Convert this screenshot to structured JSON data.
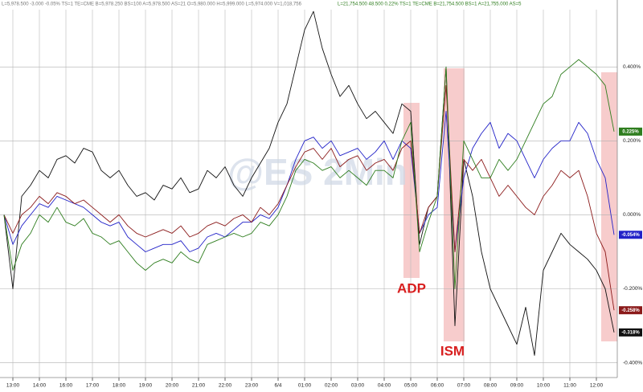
{
  "chart_data": {
    "type": "line",
    "info_lines": [
      "L=5,978.500 -3.000 -0.05% TS=1 TE=CME B=5,978.250 BS=100 A=5,978.500 AS=21 O=5,980.000 H=5,999.000 L=5,974.000 V=1,018,756",
      "L=21,754.500 48.500 0.22% TS=1 TE=CME B=21,754.500 BS=1 A=21,755.000 AS=5"
    ],
    "watermark": "@ES 2Min",
    "annotations": [
      "ADP",
      "ISM"
    ],
    "categories": [
      null,
      "13:00",
      null,
      null,
      "14:00",
      null,
      null,
      "16:00",
      null,
      null,
      "17:00",
      null,
      null,
      "18:00",
      null,
      null,
      "19:00",
      null,
      null,
      "20:00",
      null,
      null,
      "21:00",
      null,
      null,
      "22:00",
      null,
      null,
      "23:00",
      null,
      null,
      "6/4",
      null,
      null,
      "01:00",
      null,
      null,
      "02:00",
      null,
      null,
      "03:00",
      null,
      null,
      "04:00",
      null,
      null,
      "05:00",
      null,
      null,
      "06:00",
      null,
      null,
      "07:00",
      null,
      null,
      "08:00",
      null,
      null,
      "09:00",
      null,
      null,
      "10:00",
      null,
      null,
      "11:00",
      null,
      null,
      "12:00",
      null,
      null
    ],
    "ylim": [
      -0.44,
      0.57
    ],
    "yticks": [
      {
        "value": 0.4,
        "label": "0.400%"
      },
      {
        "value": 0.2,
        "label": "0.200%"
      },
      {
        "value": 0,
        "label": "0.000%"
      },
      {
        "value": -0.2,
        "label": "-0.200%"
      },
      {
        "value": -0.4,
        "label": "-0.400%"
      }
    ],
    "grid": true,
    "series": [
      {
        "name": "Black",
        "color": "#111111",
        "end_label": "-0.318%",
        "values": [
          0.0,
          -0.2,
          0.05,
          0.08,
          0.12,
          0.1,
          0.15,
          0.16,
          0.14,
          0.18,
          0.17,
          0.12,
          0.1,
          0.12,
          0.08,
          0.05,
          0.06,
          0.04,
          0.08,
          0.07,
          0.1,
          0.06,
          0.07,
          0.12,
          0.1,
          0.13,
          0.08,
          0.05,
          0.1,
          0.14,
          0.18,
          0.25,
          0.3,
          0.4,
          0.5,
          0.55,
          0.45,
          0.38,
          0.32,
          0.35,
          0.3,
          0.26,
          0.28,
          0.25,
          0.22,
          0.3,
          0.28,
          -0.08,
          0.02,
          0.05,
          0.4,
          -0.3,
          0.15,
          0.05,
          -0.1,
          -0.2,
          -0.25,
          -0.3,
          -0.35,
          -0.25,
          -0.38,
          -0.15,
          -0.1,
          -0.05,
          -0.08,
          -0.1,
          -0.12,
          -0.15,
          -0.2,
          -0.318
        ]
      },
      {
        "name": "Blue",
        "color": "#2222c8",
        "end_label": "-0.054%",
        "values": [
          0.0,
          -0.08,
          -0.03,
          0.0,
          0.03,
          0.02,
          0.05,
          0.04,
          0.03,
          0.02,
          0.0,
          -0.02,
          -0.03,
          -0.02,
          -0.06,
          -0.08,
          -0.1,
          -0.09,
          -0.08,
          -0.08,
          -0.07,
          -0.1,
          -0.09,
          -0.06,
          -0.05,
          -0.06,
          -0.04,
          -0.02,
          -0.02,
          0.0,
          -0.01,
          0.02,
          0.08,
          0.15,
          0.2,
          0.21,
          0.18,
          0.2,
          0.16,
          0.17,
          0.18,
          0.15,
          0.17,
          0.2,
          0.15,
          0.2,
          0.18,
          -0.05,
          0.0,
          0.02,
          0.28,
          -0.1,
          0.1,
          0.18,
          0.22,
          0.25,
          0.18,
          0.22,
          0.2,
          0.15,
          0.1,
          0.15,
          0.18,
          0.2,
          0.2,
          0.25,
          0.22,
          0.15,
          0.1,
          -0.054
        ]
      },
      {
        "name": "Red",
        "color": "#8b1a1a",
        "end_label": "-0.258%",
        "values": [
          0.0,
          -0.05,
          0.0,
          0.02,
          0.05,
          0.03,
          0.06,
          0.05,
          0.03,
          0.04,
          0.02,
          0.0,
          -0.02,
          0.0,
          -0.03,
          -0.05,
          -0.06,
          -0.05,
          -0.04,
          -0.05,
          -0.03,
          -0.06,
          -0.05,
          -0.03,
          -0.02,
          -0.03,
          -0.01,
          0.0,
          -0.02,
          0.02,
          0.0,
          0.03,
          0.08,
          0.13,
          0.17,
          0.18,
          0.15,
          0.18,
          0.13,
          0.15,
          0.16,
          0.12,
          0.14,
          0.15,
          0.12,
          0.18,
          0.2,
          -0.05,
          0.02,
          0.05,
          0.35,
          -0.1,
          0.15,
          0.12,
          0.15,
          0.1,
          0.05,
          0.08,
          0.05,
          0.02,
          0.0,
          0.05,
          0.08,
          0.12,
          0.1,
          0.12,
          0.05,
          -0.05,
          -0.1,
          -0.258
        ]
      },
      {
        "name": "Green",
        "color": "#2e7d1e",
        "end_label": "0.225%",
        "values": [
          0.0,
          -0.15,
          -0.08,
          -0.05,
          0.0,
          -0.02,
          0.02,
          -0.02,
          -0.03,
          -0.01,
          -0.05,
          -0.06,
          -0.08,
          -0.07,
          -0.1,
          -0.13,
          -0.15,
          -0.13,
          -0.12,
          -0.13,
          -0.1,
          -0.12,
          -0.13,
          -0.08,
          -0.07,
          -0.06,
          -0.05,
          -0.06,
          -0.05,
          -0.02,
          -0.03,
          0.0,
          0.05,
          0.12,
          0.15,
          0.14,
          0.12,
          0.13,
          0.1,
          0.12,
          0.1,
          0.08,
          0.12,
          0.12,
          0.1,
          0.2,
          0.25,
          -0.1,
          -0.02,
          0.05,
          0.4,
          -0.2,
          0.2,
          0.15,
          0.1,
          0.1,
          0.15,
          0.12,
          0.15,
          0.2,
          0.25,
          0.3,
          0.32,
          0.38,
          0.4,
          0.42,
          0.4,
          0.38,
          0.35,
          0.225
        ]
      }
    ]
  }
}
